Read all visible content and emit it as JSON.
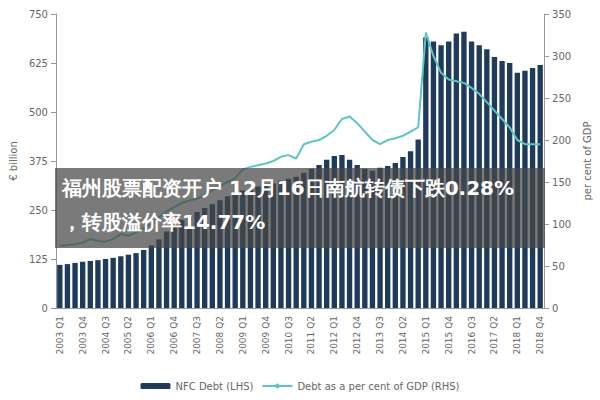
{
  "chart_data": {
    "type": "bar",
    "annotations": [
      "福州股票配资开户 12月16日南航转债下跌0.28%",
      "，转股溢价率14.77%"
    ],
    "categories": [
      "2003 Q1",
      null,
      null,
      "2003 Q4",
      null,
      null,
      "2004 Q3",
      null,
      null,
      "2005 Q2",
      null,
      null,
      "2006 Q1",
      null,
      null,
      "2006 Q4",
      null,
      null,
      "2007 Q3",
      null,
      null,
      "2008 Q2",
      null,
      null,
      "2009 Q1",
      null,
      null,
      "2009 Q4",
      null,
      null,
      "2010 Q3",
      null,
      null,
      "2011 Q2",
      null,
      null,
      "2012 Q1",
      null,
      null,
      "2012 Q4",
      null,
      null,
      "2013 Q3",
      null,
      null,
      "2014 Q2",
      null,
      null,
      "2015 Q1",
      null,
      null,
      "2015 Q4",
      null,
      null,
      "2016 Q3",
      null,
      null,
      "2017 Q2",
      null,
      null,
      "2018 Q1",
      null,
      null,
      "2018 Q4"
    ],
    "series": [
      {
        "name": "NFC Debt (LHS)",
        "type": "bar",
        "color": "#1f3b5c",
        "values": [
          110,
          112,
          115,
          118,
          120,
          122,
          125,
          128,
          132,
          136,
          140,
          148,
          160,
          175,
          195,
          210,
          225,
          235,
          245,
          255,
          265,
          275,
          285,
          290,
          300,
          305,
          310,
          312,
          318,
          325,
          330,
          335,
          345,
          355,
          365,
          378,
          388,
          390,
          378,
          365,
          355,
          350,
          358,
          362,
          370,
          385,
          400,
          430,
          690,
          680,
          670,
          680,
          700,
          705,
          680,
          670,
          660,
          640,
          630,
          625,
          600,
          605,
          612,
          620
        ]
      },
      {
        "name": "Debt as a per cent of GDP (RHS)",
        "type": "line",
        "axis": "y2",
        "color": "#5cc6c6",
        "marker": "none",
        "line_style": "solid",
        "values": [
          74,
          75,
          76,
          78,
          82,
          80,
          79,
          82,
          88,
          86,
          90,
          95,
          100,
          108,
          115,
          120,
          125,
          128,
          130,
          135,
          140,
          145,
          150,
          155,
          165,
          168,
          170,
          172,
          175,
          180,
          182,
          178,
          195,
          198,
          200,
          205,
          212,
          225,
          228,
          220,
          210,
          200,
          195,
          200,
          202,
          205,
          210,
          215,
          328,
          300,
          280,
          272,
          270,
          268,
          262,
          255,
          245,
          235,
          225,
          215,
          200,
          195,
          195,
          195
        ]
      }
    ],
    "ylabel": "€ billion",
    "y2label": "per cent of GDP",
    "ylim": [
      0,
      750
    ],
    "yticks": [
      0,
      125,
      250,
      375,
      500,
      625,
      750
    ],
    "y2lim": [
      0,
      350
    ],
    "y2ticks": [
      0,
      50,
      100,
      150,
      200,
      250,
      300,
      350
    ],
    "grid": false,
    "legend": "bottom"
  }
}
